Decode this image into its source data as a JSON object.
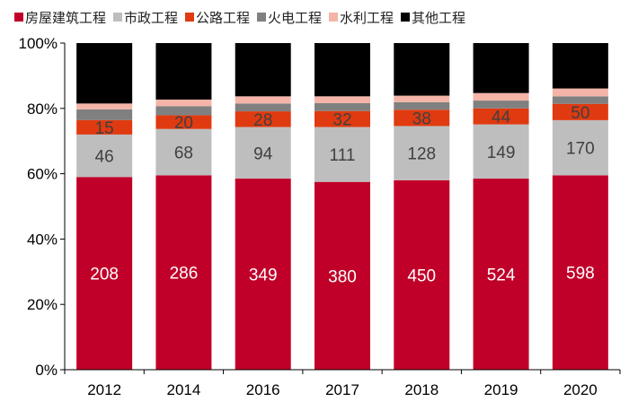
{
  "chart_data": {
    "type": "bar",
    "stacked": true,
    "normalized": true,
    "categories": [
      "2012",
      "2014",
      "2016",
      "2017",
      "2018",
      "2019",
      "2020"
    ],
    "ylim": [
      0,
      100
    ],
    "y_ticks": [
      "0%",
      "20%",
      "40%",
      "60%",
      "80%",
      "100%"
    ],
    "legend_position": "top",
    "grid": false,
    "series": [
      {
        "name": "房屋建筑工程",
        "color": "#C00029",
        "shares": [
          59,
          59.5,
          58.5,
          57.5,
          58,
          58.5,
          59.5
        ],
        "labels": [
          "208",
          "286",
          "349",
          "380",
          "450",
          "524",
          "598"
        ],
        "label_color": "#ffffff"
      },
      {
        "name": "市政工程",
        "color": "#BEBEBE",
        "shares": [
          13,
          14.2,
          15.8,
          16.8,
          16.6,
          16.6,
          16.9
        ],
        "labels": [
          "46",
          "68",
          "94",
          "111",
          "128",
          "149",
          "170"
        ],
        "label_color": "#404040"
      },
      {
        "name": "公路工程",
        "color": "#E03A10",
        "shares": [
          4.4,
          4.2,
          4.8,
          4.9,
          5.0,
          4.9,
          5.0
        ],
        "labels": [
          "15",
          "20",
          "28",
          "32",
          "38",
          "44",
          "50"
        ],
        "label_color": "#404040"
      },
      {
        "name": "火电工程",
        "color": "#808080",
        "shares": [
          3.3,
          2.8,
          2.4,
          2.4,
          2.3,
          2.4,
          2.3
        ],
        "labels": [
          "",
          "",
          "",
          "",
          "",
          "",
          ""
        ],
        "label_color": "#404040"
      },
      {
        "name": "水利工程",
        "color": "#F4B4A8",
        "shares": [
          1.8,
          2.0,
          2.2,
          2.1,
          2.0,
          2.3,
          2.4
        ],
        "labels": [
          "",
          "",
          "",
          "",
          "",
          "",
          ""
        ],
        "label_color": "#404040"
      },
      {
        "name": "其他工程",
        "color": "#000000",
        "shares": [
          18.5,
          17.3,
          16.3,
          16.3,
          16.1,
          15.3,
          13.9
        ],
        "labels": [
          "",
          "",
          "",
          "",
          "",
          "",
          ""
        ],
        "label_color": "#ffffff"
      }
    ]
  }
}
